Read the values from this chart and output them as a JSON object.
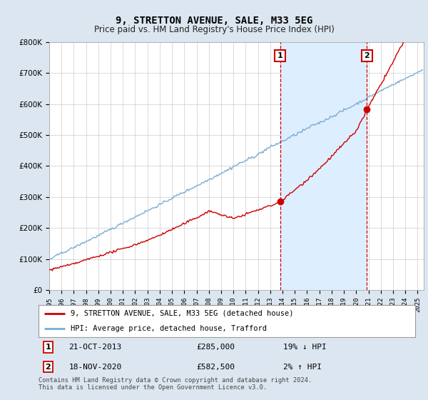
{
  "title": "9, STRETTON AVENUE, SALE, M33 5EG",
  "subtitle": "Price paid vs. HM Land Registry's House Price Index (HPI)",
  "footer": "Contains HM Land Registry data © Crown copyright and database right 2024.\nThis data is licensed under the Open Government Licence v3.0.",
  "legend_line1": "9, STRETTON AVENUE, SALE, M33 5EG (detached house)",
  "legend_line2": "HPI: Average price, detached house, Trafford",
  "transaction1_label": "1",
  "transaction1_date": "21-OCT-2013",
  "transaction1_price": "£285,000",
  "transaction1_hpi": "19% ↓ HPI",
  "transaction1_year": 2013.8,
  "transaction2_label": "2",
  "transaction2_date": "18-NOV-2020",
  "transaction2_price": "£582,500",
  "transaction2_hpi": "2% ↑ HPI",
  "transaction2_year": 2020.88,
  "fig_bg": "#dce6f0",
  "plot_bg": "#ffffff",
  "red_color": "#cc0000",
  "blue_color": "#7aadd4",
  "shade_color": "#ddeeff",
  "grid_color": "#cccccc",
  "ylim": [
    0,
    800000
  ],
  "xlim_start": 1995,
  "xlim_end": 2025.5
}
